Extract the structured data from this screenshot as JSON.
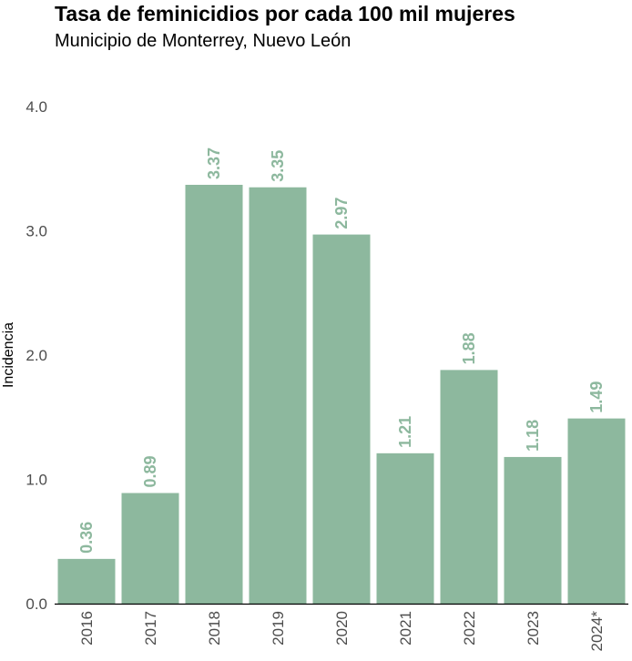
{
  "chart_data": {
    "type": "bar",
    "title": "Tasa de feminicidios por cada 100 mil mujeres",
    "subtitle": "Municipio de Monterrey, Nuevo León",
    "ylabel": "Incidencia",
    "xlabel": "",
    "categories": [
      "2016",
      "2017",
      "2018",
      "2019",
      "2020",
      "2021",
      "2022",
      "2023",
      "2024*"
    ],
    "values": [
      0.36,
      0.89,
      3.37,
      3.35,
      2.97,
      1.21,
      1.88,
      1.18,
      1.49
    ],
    "data_labels": [
      "0.36",
      "0.89",
      "3.37",
      "3.35",
      "2.97",
      "1.21",
      "1.88",
      "1.18",
      "1.49"
    ],
    "ylim": [
      0,
      4
    ],
    "yticks": [
      0,
      1,
      2,
      3,
      4
    ],
    "ytick_labels": [
      "0.0",
      "1.0",
      "2.0",
      "3.0",
      "4.0"
    ],
    "grid": false,
    "bar_color": "#8db89e",
    "label_color": "#8db89e"
  }
}
